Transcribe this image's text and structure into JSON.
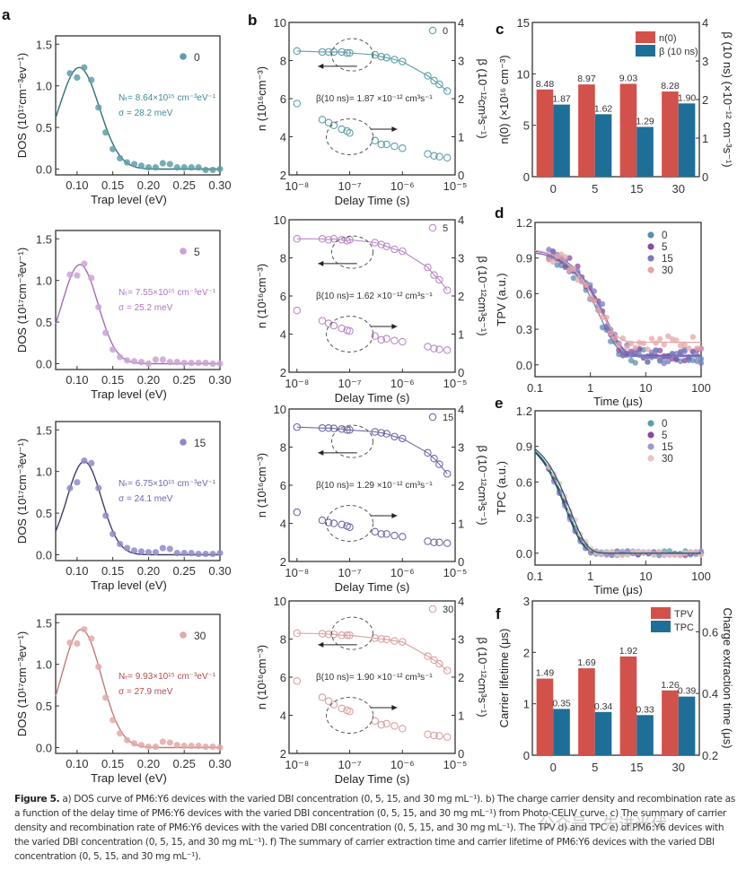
{
  "figure": {
    "caption_label": "Figure 5.",
    "caption_text": " a) DOS curve of PM6:Y6 devices with the varied DBI concentration (0, 5, 15, and 30 mg mL⁻¹). b) The charge carrier density and recombination rate as a function of the delay time of PM6:Y6 devices with the varied DBI concentration (0, 5, 15, and 30 mg mL⁻¹) from Photo-CELIV curve. c) The summary of carrier density and recombination rate of PM6:Y6 devices with the varied DBI concentration (0, 5, 15, and 30 mg mL⁻¹). The TPV d) and TPC e) of PM6:Y6 devices with the varied DBI concentration (0, 5, 15, and 30 mg mL⁻¹). f) The summary of carrier extraction time and carrier lifetime of PM6:Y6 devices with the varied DBI concentration (0, 5, 15, and 30 mg mL⁻¹).",
    "watermark": "公众号 · 先进光伏"
  },
  "chart_data": [
    {
      "id": "a",
      "type": "scatter",
      "panel_label": "a",
      "xlabel": "Trap level (eV)",
      "ylabel": "DOS (10¹⁷cm⁻³ev⁻¹)",
      "xlim": [
        0.07,
        0.3
      ],
      "ylim": [
        -0.07,
        1.6
      ],
      "xticks": [
        0.1,
        0.15,
        0.2,
        0.25,
        0.3
      ],
      "yticks": [
        0.0,
        0.5,
        1.0,
        1.5
      ],
      "subplots": [
        {
          "legend": "0",
          "color": "#5f9ea8",
          "fit_color": "#2f6f78",
          "annot1": "Nₜ= 8.64×10¹⁵ cm⁻³eV⁻¹",
          "annot2": "σ = 28.2 meV",
          "annot_color": "#3d8a94",
          "fit": {
            "peak": 1.22,
            "center": 0.103,
            "sigma": 0.0282,
            "baseline": 0.0
          },
          "x": [
            0.09,
            0.1,
            0.11,
            0.12,
            0.13,
            0.14,
            0.15,
            0.16,
            0.17,
            0.18,
            0.19,
            0.2,
            0.21,
            0.22,
            0.23,
            0.24,
            0.25,
            0.26,
            0.27,
            0.28,
            0.29,
            0.3
          ],
          "y": [
            1.15,
            1.1,
            1.22,
            1.07,
            0.74,
            0.44,
            0.24,
            0.13,
            0.08,
            0.06,
            0.04,
            0.02,
            0.02,
            0.07,
            0.06,
            0.02,
            0.02,
            0.02,
            0.02,
            -0.01,
            -0.01,
            0.0
          ]
        },
        {
          "legend": "5",
          "color": "#c9a3d6",
          "fit_color": "#a070b0",
          "annot1": "Nₜ= 7.55×10¹⁵ cm⁻³eV⁻¹",
          "annot2": "σ = 25.2 meV",
          "annot_color": "#b074c4",
          "fit": {
            "peak": 1.19,
            "center": 0.104,
            "sigma": 0.0252,
            "baseline": 0.0
          },
          "x": [
            0.09,
            0.1,
            0.11,
            0.12,
            0.13,
            0.14,
            0.15,
            0.16,
            0.17,
            0.18,
            0.19,
            0.2,
            0.21,
            0.22,
            0.23,
            0.24,
            0.25,
            0.26,
            0.27,
            0.28,
            0.29,
            0.3
          ],
          "y": [
            1.07,
            1.06,
            1.2,
            1.03,
            0.68,
            0.37,
            0.17,
            0.08,
            0.04,
            0.03,
            0.02,
            0.0,
            0.05,
            0.05,
            0.02,
            0.02,
            0.01,
            0.01,
            0.01,
            0.01,
            0.0,
            0.0
          ]
        },
        {
          "legend": "15",
          "color": "#8f8ac8",
          "fit_color": "#3c3c68",
          "annot1": "Nₜ= 6.75×10¹⁵ cm⁻³eV⁻¹",
          "annot2": "σ = 24.1 meV",
          "annot_color": "#6a68a8",
          "fit": {
            "peak": 1.12,
            "center": 0.11,
            "sigma": 0.0241,
            "baseline": 0.0
          },
          "x": [
            0.09,
            0.1,
            0.11,
            0.12,
            0.13,
            0.14,
            0.15,
            0.16,
            0.17,
            0.18,
            0.19,
            0.2,
            0.21,
            0.22,
            0.23,
            0.24,
            0.25,
            0.26,
            0.27,
            0.28,
            0.29,
            0.3
          ],
          "y": [
            0.8,
            0.87,
            1.13,
            1.1,
            0.8,
            0.47,
            0.25,
            0.13,
            0.08,
            0.05,
            0.04,
            0.03,
            0.03,
            0.08,
            0.07,
            0.02,
            0.02,
            0.02,
            0.01,
            0.01,
            0.01,
            0.02
          ]
        },
        {
          "legend": "30",
          "color": "#e3a8a8",
          "fit_color": "#c07a7a",
          "annot1": "Nₜ= 9.93×10¹⁵ cm⁻³eV⁻¹",
          "annot2": "σ = 27.9 meV",
          "annot_color": "#b84a4a",
          "fit": {
            "peak": 1.42,
            "center": 0.106,
            "sigma": 0.0279,
            "baseline": 0.0
          },
          "x": [
            0.09,
            0.1,
            0.11,
            0.12,
            0.13,
            0.14,
            0.15,
            0.16,
            0.17,
            0.18,
            0.19,
            0.2,
            0.21,
            0.22,
            0.23,
            0.24,
            0.25,
            0.26,
            0.27,
            0.28,
            0.29,
            0.3
          ],
          "y": [
            1.26,
            1.25,
            1.42,
            1.31,
            0.97,
            0.6,
            0.33,
            0.17,
            0.09,
            0.05,
            0.03,
            0.01,
            0.01,
            0.07,
            0.06,
            0.03,
            0.02,
            0.02,
            0.02,
            0.01,
            0.01,
            0.0
          ]
        }
      ]
    },
    {
      "id": "b",
      "type": "scatter",
      "panel_label": "b",
      "xlabel": "Delay Time (s)",
      "ylabel_left": "n (10¹⁶cm⁻³)",
      "ylabel_right": "β (10⁻¹²cm³s⁻¹)",
      "xscale": "log",
      "xlim_exp": [
        -8.15,
        -5.0
      ],
      "xticks": [
        "10⁻⁸",
        "10⁻⁷",
        "10⁻⁶",
        "10⁻⁵"
      ],
      "ylim_left": [
        2,
        10
      ],
      "ylim_right": [
        0,
        4
      ],
      "yticks_left": [
        2,
        4,
        6,
        8,
        10
      ],
      "yticks_right": [
        0,
        1,
        2,
        3,
        4
      ],
      "x_exp": [
        -8.0,
        -7.52,
        -7.4,
        -7.3,
        -7.15,
        -7.05,
        -7.0,
        -6.52,
        -6.4,
        -6.3,
        -6.15,
        -6.0,
        -5.52,
        -5.4,
        -5.3,
        -5.15
      ],
      "subplots": [
        {
          "legend": "0",
          "color": "#5f9ea8",
          "annotation": "β(10 ns)= 1.87 ×10⁻¹² cm³s⁻¹",
          "n": [
            8.5,
            8.45,
            8.45,
            8.45,
            8.45,
            8.4,
            8.4,
            8.3,
            8.2,
            8.15,
            8.05,
            7.95,
            7.2,
            6.95,
            6.75,
            6.4
          ],
          "beta": [
            1.87,
            1.45,
            1.37,
            1.3,
            1.2,
            1.15,
            1.1,
            0.9,
            0.8,
            0.8,
            0.75,
            0.7,
            0.55,
            0.5,
            0.48,
            0.45
          ]
        },
        {
          "legend": "5",
          "color": "#b98ac7",
          "annotation": "β(10 ns)= 1.62 ×10⁻¹² cm³s⁻¹",
          "n": [
            9.0,
            9.0,
            8.95,
            9.0,
            8.95,
            8.9,
            8.95,
            8.8,
            8.7,
            8.6,
            8.45,
            8.35,
            7.5,
            7.1,
            6.85,
            6.3
          ],
          "beta": [
            1.62,
            1.35,
            1.28,
            1.22,
            1.15,
            1.1,
            1.08,
            0.95,
            0.85,
            0.88,
            0.83,
            0.8,
            0.67,
            0.62,
            0.6,
            0.58
          ]
        },
        {
          "legend": "15",
          "color": "#6f6aa8",
          "annotation": "β(10 ns)= 1.29 ×10⁻¹² cm³s⁻¹",
          "n": [
            9.05,
            9.0,
            9.0,
            8.98,
            8.95,
            8.9,
            8.9,
            8.8,
            8.75,
            8.7,
            8.55,
            8.45,
            7.7,
            7.4,
            7.1,
            6.6
          ],
          "beta": [
            1.29,
            1.08,
            1.02,
            1.0,
            0.97,
            0.93,
            0.9,
            0.78,
            0.72,
            0.72,
            0.68,
            0.65,
            0.53,
            0.5,
            0.5,
            0.48
          ]
        },
        {
          "legend": "30",
          "color": "#d9a0a0",
          "annotation": "β(10 ns)= 1.90 ×10⁻¹² cm³s⁻¹",
          "n": [
            8.3,
            8.28,
            8.25,
            8.25,
            8.2,
            8.2,
            8.2,
            8.05,
            8.0,
            7.98,
            7.9,
            7.85,
            7.1,
            6.9,
            6.7,
            6.35
          ],
          "beta": [
            1.9,
            1.47,
            1.37,
            1.28,
            1.18,
            1.13,
            1.1,
            0.85,
            0.75,
            0.78,
            0.72,
            0.65,
            0.5,
            0.47,
            0.46,
            0.43
          ]
        }
      ]
    },
    {
      "id": "c",
      "type": "bar",
      "panel_label": "c",
      "categories": [
        "0",
        "5",
        "15",
        "30"
      ],
      "ylabel_left": "n(0) (×10¹⁶ cm⁻³)",
      "ylabel_right": "β (10 ns) (×10⁻¹² cm⁻³s⁻¹)",
      "ylim_left": [
        0,
        15
      ],
      "ylim_right": [
        0,
        4
      ],
      "yticks_left": [
        0,
        5,
        10,
        15
      ],
      "yticks_right": [
        0,
        1,
        2,
        3,
        4
      ],
      "series": [
        {
          "name": "n(0)",
          "axis": "left",
          "color": "#d2514a",
          "values": [
            8.48,
            8.97,
            9.03,
            8.28
          ],
          "labels": [
            "8.48",
            "8.97",
            "9.03",
            "8.28"
          ]
        },
        {
          "name": "β (10 ns)",
          "axis": "right",
          "color": "#1d6f98",
          "values": [
            1.87,
            1.62,
            1.29,
            1.9
          ],
          "labels": [
            "1.87",
            "1.62",
            "1.29",
            "1.90"
          ]
        }
      ],
      "legend_position": "top-right"
    },
    {
      "id": "d",
      "type": "scatter",
      "panel_label": "d",
      "xlabel": "Time (μs)",
      "ylabel": "TPV (a.u.)",
      "xscale": "log",
      "xlim": [
        0.1,
        100
      ],
      "xticks": [
        "0.1",
        "1",
        "10",
        "100"
      ],
      "ylim": [
        -0.1,
        1.2
      ],
      "yticks": [
        "0.0",
        "0.3",
        "0.6",
        "0.9",
        "1.2"
      ],
      "legend_position": "top-right",
      "series": [
        {
          "name": "0",
          "color": "#5a8fb0",
          "tau": 1.4,
          "plateau": 0.07,
          "amp": 0.97
        },
        {
          "name": "5",
          "color": "#8a4aa0",
          "tau": 1.6,
          "plateau": 0.08,
          "amp": 0.98
        },
        {
          "name": "15",
          "color": "#7a7ac0",
          "tau": 1.75,
          "plateau": 0.07,
          "amp": 0.96
        },
        {
          "name": "30",
          "color": "#e6a6a6",
          "tau": 1.3,
          "plateau": 0.19,
          "amp": 0.99
        }
      ]
    },
    {
      "id": "e",
      "type": "scatter",
      "panel_label": "e",
      "xlabel": "Time (μs)",
      "ylabel": "TPC (a.u.)",
      "xscale": "log",
      "xlim": [
        0.1,
        100
      ],
      "xticks": [
        "0.1",
        "1",
        "10",
        "100"
      ],
      "ylim": [
        -0.1,
        1.2
      ],
      "yticks": [
        "0.0",
        "0.3",
        "0.6",
        "0.9",
        "1.2"
      ],
      "legend_position": "top-right",
      "series": [
        {
          "name": "0",
          "color": "#5f9ea8",
          "tau": 0.35
        },
        {
          "name": "5",
          "color": "#8a4aa0",
          "tau": 0.34
        },
        {
          "name": "15",
          "color": "#9a9ad0",
          "tau": 0.33
        },
        {
          "name": "30",
          "color": "#e8c6c0",
          "tau": 0.39
        }
      ]
    },
    {
      "id": "f",
      "type": "bar",
      "panel_label": "f",
      "categories": [
        "0",
        "5",
        "15",
        "30"
      ],
      "ylabel_left": "Carrier lifetime (μs)",
      "ylabel_right": "Charge extraction time (μs)",
      "ylim_left": [
        0,
        3
      ],
      "ylim_right": [
        0.2,
        0.7
      ],
      "yticks_left": [
        0,
        1,
        2,
        3
      ],
      "yticks_right": [
        0.2,
        0.4,
        0.6
      ],
      "series": [
        {
          "name": "TPV",
          "axis": "left",
          "color": "#d2514a",
          "values": [
            1.49,
            1.69,
            1.92,
            1.26
          ],
          "labels": [
            "1.49",
            "1.69",
            "1.92",
            "1.26"
          ]
        },
        {
          "name": "TPC",
          "axis": "right",
          "color": "#1d6f98",
          "values": [
            0.35,
            0.34,
            0.33,
            0.39
          ],
          "labels": [
            "0.35",
            "0.34",
            "0.33",
            "0.39"
          ]
        }
      ],
      "legend_position": "top-right"
    }
  ]
}
